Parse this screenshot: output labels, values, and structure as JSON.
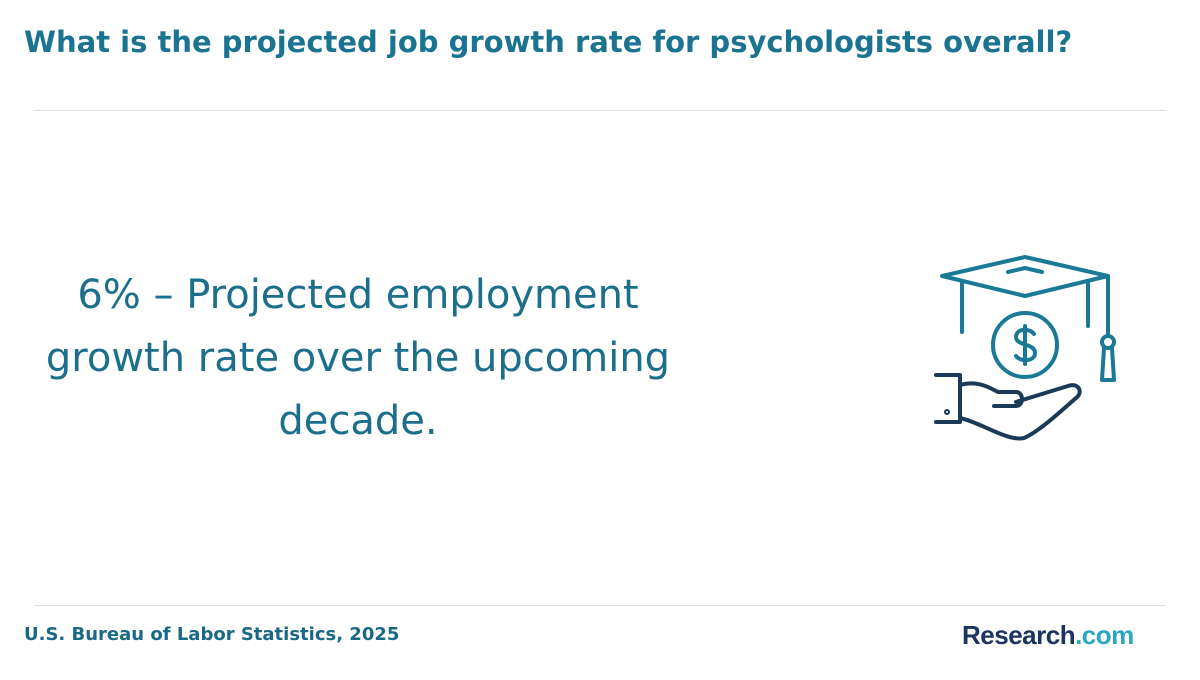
{
  "header": {
    "title": "What is the projected job growth rate for psychologists overall?"
  },
  "stat": {
    "text": "6% – Projected employment growth rate over the upcoming decade."
  },
  "footer": {
    "source": "U.S. Bureau of Labor Statistics, 2025",
    "logo": {
      "name": "Research",
      "suffix": ".com"
    }
  }
}
